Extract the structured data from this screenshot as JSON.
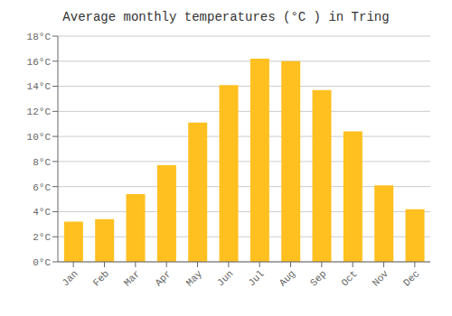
{
  "chart_data": {
    "type": "bar",
    "title": "Average monthly temperatures (°C ) in Tring",
    "categories": [
      "Jan",
      "Feb",
      "Mar",
      "Apr",
      "May",
      "Jun",
      "Jul",
      "Aug",
      "Sep",
      "Oct",
      "Nov",
      "Dec"
    ],
    "values": [
      3.2,
      3.4,
      5.4,
      7.7,
      11.1,
      14.1,
      16.2,
      16.0,
      13.7,
      10.4,
      6.1,
      4.2
    ],
    "color": "#FFC020",
    "ylim": [
      0,
      18
    ],
    "yticks": [
      {
        "value": 0,
        "label": "0°C"
      },
      {
        "value": 2,
        "label": "2°C"
      },
      {
        "value": 4,
        "label": "4°C"
      },
      {
        "value": 6,
        "label": "6°C"
      },
      {
        "value": 8,
        "label": "8°C"
      },
      {
        "value": 10,
        "label": "10°C"
      },
      {
        "value": 12,
        "label": "12°C"
      },
      {
        "value": 14,
        "label": "14°C"
      },
      {
        "value": 16,
        "label": "16°C"
      },
      {
        "value": 18,
        "label": "18°C"
      }
    ],
    "grid": true
  }
}
